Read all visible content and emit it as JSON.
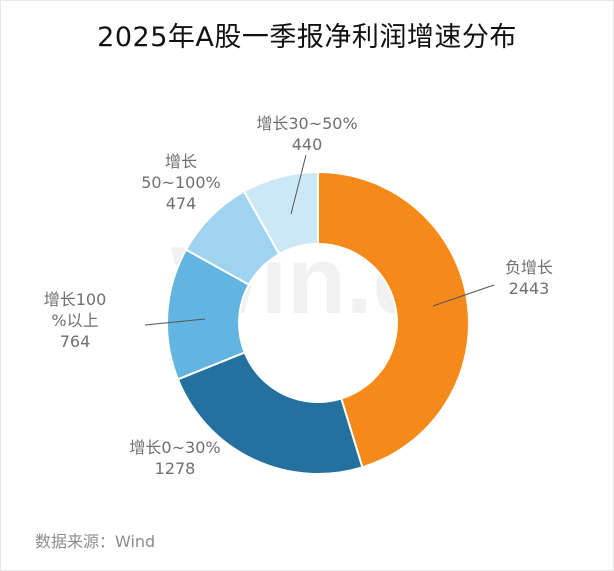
{
  "title": "2025年A股一季报净利润增速分布",
  "source": "数据来源：Wind",
  "watermark": "Win.d",
  "chart_data": {
    "type": "pie",
    "donut": true,
    "categories": [
      "负增长",
      "增长0~30%",
      "增长100%以上",
      "增长50~100%",
      "增长30~50%"
    ],
    "values": [
      2443,
      1278,
      764,
      474,
      440
    ],
    "colors": [
      "#f5891a",
      "#2471a0",
      "#62b5e0",
      "#9fd3ef",
      "#cce8f7"
    ]
  }
}
